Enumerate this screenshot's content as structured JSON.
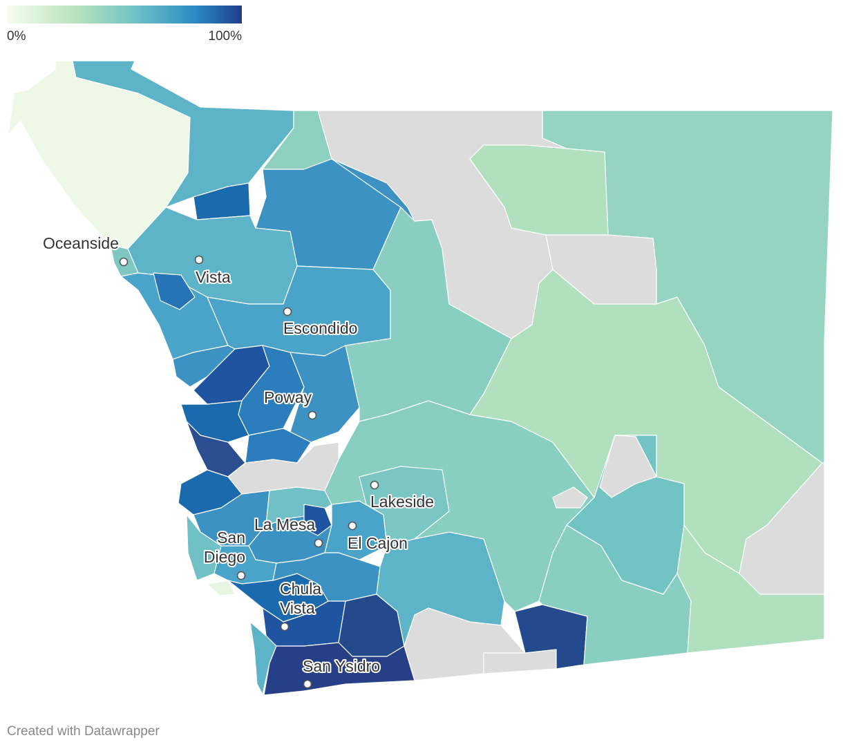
{
  "legend": {
    "min_label": "0%",
    "max_label": "100%",
    "colors": [
      "#f7fcf0",
      "#b7e2bc",
      "#6fc1c6",
      "#2b8cc4",
      "#1f3d8a"
    ]
  },
  "colors": {
    "no_data": "#dcdcdc",
    "boundary": "#ffffff"
  },
  "cities": [
    {
      "name": "Oceanside",
      "lines": [
        "Oceanside"
      ]
    },
    {
      "name": "Vista",
      "lines": [
        "Vista"
      ]
    },
    {
      "name": "Escondido",
      "lines": [
        "Escondido"
      ]
    },
    {
      "name": "Poway",
      "lines": [
        "Poway"
      ]
    },
    {
      "name": "Lakeside",
      "lines": [
        "Lakeside"
      ]
    },
    {
      "name": "La Mesa",
      "lines": [
        "La Mesa"
      ]
    },
    {
      "name": "El Cajon",
      "lines": [
        "El Cajon"
      ]
    },
    {
      "name": "San Diego",
      "lines": [
        "San",
        "Diego"
      ]
    },
    {
      "name": "Chula Vista",
      "lines": [
        "Chula",
        "Vista"
      ]
    },
    {
      "name": "San Ysidro",
      "lines": [
        "San Ysidro"
      ]
    }
  ],
  "footer": {
    "credit": "Created with Datawrapper"
  }
}
